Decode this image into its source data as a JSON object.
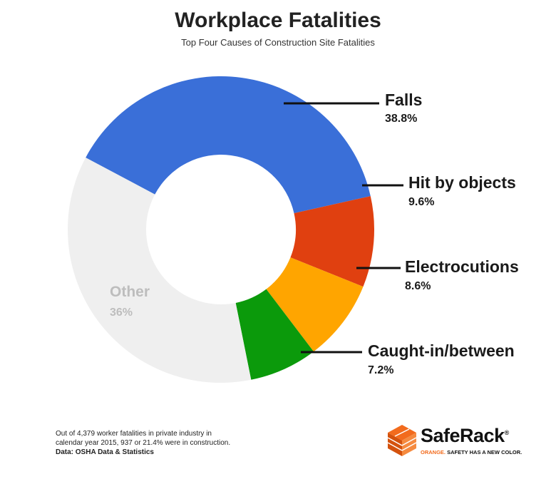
{
  "header": {
    "title": "Workplace Fatalities",
    "subtitle": "Top Four Causes of Construction Site Fatalities"
  },
  "chart_data": {
    "type": "pie",
    "donut": true,
    "title": "Workplace Fatalities",
    "subtitle": "Top Four Causes of Construction Site Fatalities",
    "slices": [
      {
        "label": "Falls",
        "value": 38.8,
        "display": "38.8%",
        "color": "#3a6fd8"
      },
      {
        "label": "Hit by objects",
        "value": 9.6,
        "display": "9.6%",
        "color": "#e04010"
      },
      {
        "label": "Electrocutions",
        "value": 8.6,
        "display": "8.6%",
        "color": "#ffa500"
      },
      {
        "label": "Caught-in/between",
        "value": 7.2,
        "display": "7.2%",
        "color": "#0b9a0b"
      },
      {
        "label": "Other",
        "value": 36,
        "display": "36%",
        "color": "#efefef"
      }
    ]
  },
  "footnote": {
    "line1": "Out of 4,379 worker fatalities in private industry in",
    "line2": "calendar year 2015, 937 or 21.4% were in construction.",
    "source": "Data: OSHA Data & Statistics"
  },
  "logo": {
    "name": "SafeRack",
    "registered": "®",
    "tag_accent": "ORANGE.",
    "tag_rest": " SAFETY HAS A NEW COLOR.",
    "brand_color": "#f26b1d"
  }
}
